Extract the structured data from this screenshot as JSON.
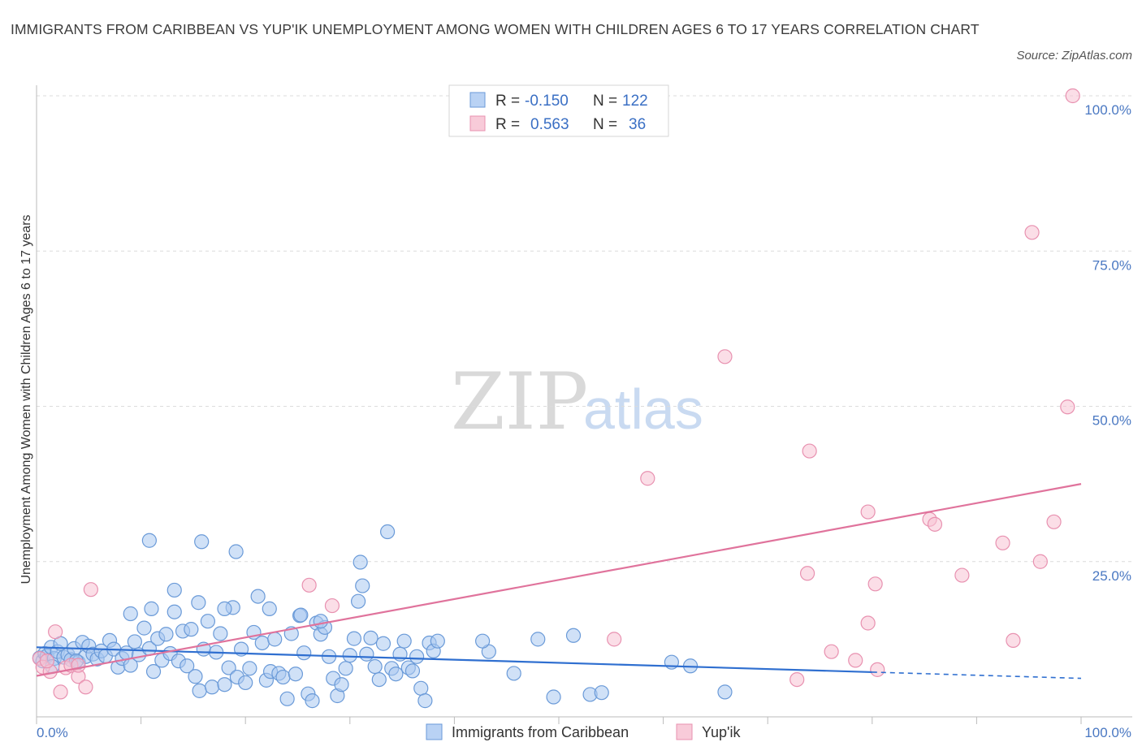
{
  "title": "IMMIGRANTS FROM CARIBBEAN VS YUP'IK UNEMPLOYMENT AMONG WOMEN WITH CHILDREN AGES 6 TO 17 YEARS CORRELATION CHART",
  "source": "Source: ZipAtlas.com",
  "watermark": {
    "zip": "ZIP",
    "atlas": "atlas"
  },
  "legend": {
    "rows": [
      {
        "r_label": "R =",
        "r_value": "-0.150",
        "n_label": "N =",
        "n_value": "122"
      },
      {
        "r_label": "R =",
        "r_value": "0.563",
        "n_label": "N =",
        "n_value": "36"
      }
    ]
  },
  "colors": {
    "blue_fill": "#a9c8f0",
    "blue_stroke": "#6a9ad8",
    "blue_line": "#2f6fd0",
    "pink_fill": "#f7c3d3",
    "pink_stroke": "#e891b0",
    "pink_line": "#e0739c"
  },
  "chart_data": {
    "type": "scatter",
    "xlabel": "",
    "ylabel": "Unemployment Among Women with Children Ages 6 to 17 years",
    "xlim": [
      0,
      100
    ],
    "ylim": [
      0,
      100
    ],
    "x_tick_labels": [
      "0.0%",
      "100.0%"
    ],
    "y_ticks": [
      25,
      50,
      75,
      100
    ],
    "y_tick_labels": [
      "25.0%",
      "50.0%",
      "75.0%",
      "100.0%"
    ],
    "grid": true,
    "legend_placement": "top-center",
    "series": [
      {
        "name": "Immigrants from Caribbean",
        "trend": {
          "x": [
            0,
            100
          ],
          "y": [
            11.2,
            6.2
          ],
          "solid_until": 80
        },
        "points": [
          [
            0.3,
            9.5
          ],
          [
            0.6,
            9.0
          ],
          [
            0.8,
            10.2
          ],
          [
            1.0,
            9.8
          ],
          [
            1.4,
            11.2
          ],
          [
            1.7,
            9.4
          ],
          [
            2.0,
            10.5
          ],
          [
            2.3,
            11.8
          ],
          [
            2.6,
            9.6
          ],
          [
            3.0,
            10.0
          ],
          [
            3.3,
            9.2
          ],
          [
            3.6,
            11.0
          ],
          [
            4.0,
            8.8
          ],
          [
            4.4,
            12.0
          ],
          [
            4.7,
            9.7
          ],
          [
            5.0,
            11.4
          ],
          [
            5.4,
            10.1
          ],
          [
            5.8,
            9.3
          ],
          [
            6.2,
            10.6
          ],
          [
            6.6,
            9.8
          ],
          [
            7.0,
            12.3
          ],
          [
            7.4,
            10.9
          ],
          [
            7.8,
            8.0
          ],
          [
            8.2,
            9.4
          ],
          [
            8.6,
            10.3
          ],
          [
            9.0,
            8.3
          ],
          [
            9.4,
            12.1
          ],
          [
            9.8,
            10.0
          ],
          [
            10.3,
            14.3
          ],
          [
            10.8,
            11.0
          ],
          [
            11.2,
            7.3
          ],
          [
            11.6,
            12.6
          ],
          [
            12.0,
            9.1
          ],
          [
            12.4,
            13.3
          ],
          [
            12.8,
            10.2
          ],
          [
            13.2,
            20.4
          ],
          [
            13.6,
            9.0
          ],
          [
            14.0,
            13.8
          ],
          [
            14.4,
            8.2
          ],
          [
            14.8,
            14.1
          ],
          [
            15.2,
            6.5
          ],
          [
            15.6,
            4.2
          ],
          [
            16.0,
            10.9
          ],
          [
            16.4,
            15.4
          ],
          [
            16.8,
            4.8
          ],
          [
            17.2,
            10.4
          ],
          [
            17.6,
            13.4
          ],
          [
            18.0,
            5.2
          ],
          [
            18.4,
            7.9
          ],
          [
            18.8,
            17.6
          ],
          [
            19.2,
            6.4
          ],
          [
            19.6,
            10.9
          ],
          [
            20.0,
            5.5
          ],
          [
            20.4,
            7.8
          ],
          [
            20.8,
            13.6
          ],
          [
            21.2,
            19.4
          ],
          [
            21.6,
            11.9
          ],
          [
            22.0,
            5.9
          ],
          [
            22.4,
            7.3
          ],
          [
            22.8,
            12.5
          ],
          [
            23.2,
            7.0
          ],
          [
            23.6,
            6.4
          ],
          [
            24.0,
            2.9
          ],
          [
            24.4,
            13.4
          ],
          [
            24.8,
            6.9
          ],
          [
            25.2,
            16.3
          ],
          [
            25.6,
            10.3
          ],
          [
            26.0,
            3.7
          ],
          [
            26.4,
            2.6
          ],
          [
            26.8,
            15.1
          ],
          [
            27.2,
            13.3
          ],
          [
            27.6,
            14.4
          ],
          [
            28.0,
            9.7
          ],
          [
            28.4,
            6.2
          ],
          [
            28.8,
            3.4
          ],
          [
            29.2,
            5.2
          ],
          [
            29.6,
            7.8
          ],
          [
            30.0,
            9.9
          ],
          [
            30.4,
            12.6
          ],
          [
            30.8,
            18.6
          ],
          [
            31.2,
            21.1
          ],
          [
            31.6,
            10.1
          ],
          [
            32.0,
            12.7
          ],
          [
            32.4,
            8.1
          ],
          [
            32.8,
            6.0
          ],
          [
            33.2,
            11.8
          ],
          [
            33.6,
            29.8
          ],
          [
            34.0,
            7.8
          ],
          [
            34.4,
            6.9
          ],
          [
            34.8,
            10.1
          ],
          [
            35.2,
            12.2
          ],
          [
            35.6,
            7.9
          ],
          [
            36.0,
            7.4
          ],
          [
            36.4,
            9.7
          ],
          [
            36.8,
            4.6
          ],
          [
            37.2,
            2.6
          ],
          [
            37.6,
            11.9
          ],
          [
            38.0,
            10.6
          ],
          [
            38.4,
            12.2
          ],
          [
            10.8,
            28.4
          ],
          [
            15.8,
            28.2
          ],
          [
            19.1,
            26.6
          ],
          [
            31.0,
            24.9
          ],
          [
            11.0,
            17.4
          ],
          [
            9.0,
            16.6
          ],
          [
            13.2,
            16.9
          ],
          [
            15.5,
            18.4
          ],
          [
            18.0,
            17.4
          ],
          [
            22.3,
            17.4
          ],
          [
            25.3,
            16.4
          ],
          [
            27.2,
            15.4
          ],
          [
            48.0,
            12.5
          ],
          [
            51.4,
            13.1
          ],
          [
            53.0,
            3.6
          ],
          [
            54.1,
            3.9
          ],
          [
            49.5,
            3.2
          ],
          [
            60.8,
            8.8
          ],
          [
            65.9,
            4.0
          ],
          [
            62.6,
            8.2
          ],
          [
            45.7,
            7.0
          ],
          [
            43.3,
            10.5
          ],
          [
            42.7,
            12.2
          ],
          [
            1.5,
            8.1
          ],
          [
            3.8,
            9.0
          ]
        ]
      },
      {
        "name": "Yup'ik",
        "trend": {
          "x": [
            0,
            100
          ],
          "y": [
            6.6,
            37.5
          ],
          "solid_until": 100
        },
        "points": [
          [
            0.3,
            9.4
          ],
          [
            0.6,
            8.0
          ],
          [
            1.3,
            7.3
          ],
          [
            1.8,
            13.7
          ],
          [
            2.3,
            4.0
          ],
          [
            2.8,
            7.9
          ],
          [
            3.3,
            8.3
          ],
          [
            4.0,
            6.5
          ],
          [
            4.7,
            4.8
          ],
          [
            5.2,
            20.5
          ],
          [
            26.1,
            21.2
          ],
          [
            28.3,
            17.9
          ],
          [
            55.3,
            12.5
          ],
          [
            58.5,
            38.4
          ],
          [
            65.9,
            58.0
          ],
          [
            72.8,
            6.0
          ],
          [
            73.8,
            23.1
          ],
          [
            76.1,
            10.5
          ],
          [
            78.4,
            9.1
          ],
          [
            79.6,
            33.0
          ],
          [
            79.6,
            15.1
          ],
          [
            80.3,
            21.4
          ],
          [
            80.5,
            7.6
          ],
          [
            74.0,
            42.8
          ],
          [
            85.5,
            31.8
          ],
          [
            86.0,
            31.0
          ],
          [
            88.6,
            22.8
          ],
          [
            92.5,
            28.0
          ],
          [
            93.5,
            12.3
          ],
          [
            95.3,
            78.0
          ],
          [
            96.1,
            25.0
          ],
          [
            97.4,
            31.4
          ],
          [
            98.7,
            49.9
          ],
          [
            99.2,
            100.0
          ],
          [
            1.0,
            9.0
          ],
          [
            4.0,
            8.3
          ]
        ]
      }
    ]
  },
  "bottom_legend": [
    "Immigrants from Caribbean",
    "Yup'ik"
  ]
}
